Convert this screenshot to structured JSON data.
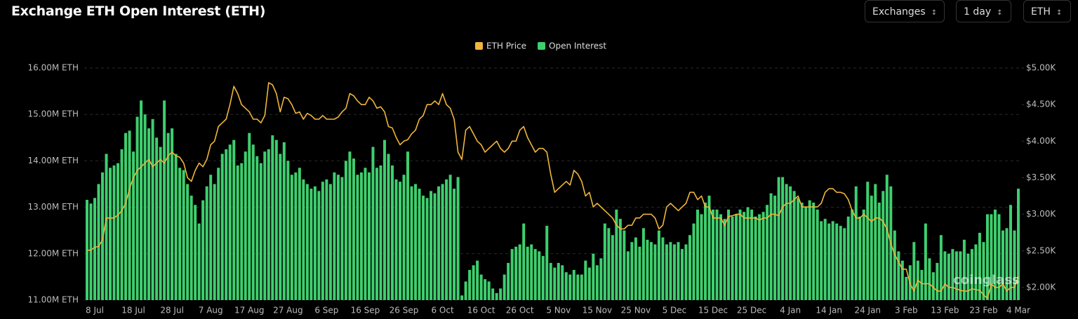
{
  "header": {
    "title": "Exchange ETH Open Interest (ETH)",
    "controls": [
      "Exchanges",
      "1 day",
      "ETH"
    ]
  },
  "chart_data": {
    "type": "bar",
    "watermark": "coinglass",
    "categories": [
      null,
      null,
      "8 Jul",
      null,
      null,
      null,
      null,
      null,
      null,
      null,
      null,
      null,
      "18 Jul",
      null,
      null,
      null,
      null,
      null,
      null,
      null,
      null,
      null,
      "28 Jul",
      null,
      null,
      null,
      null,
      null,
      null,
      null,
      null,
      null,
      "7 Aug",
      null,
      null,
      null,
      null,
      null,
      null,
      null,
      null,
      null,
      "17 Aug",
      null,
      null,
      null,
      null,
      null,
      null,
      null,
      null,
      null,
      "27 Aug",
      null,
      null,
      null,
      null,
      null,
      null,
      null,
      null,
      null,
      "6 Sep",
      null,
      null,
      null,
      null,
      null,
      null,
      null,
      null,
      null,
      "16 Sep",
      null,
      null,
      null,
      null,
      null,
      null,
      null,
      null,
      null,
      "26 Sep",
      null,
      null,
      null,
      null,
      null,
      null,
      null,
      null,
      null,
      "6 Oct",
      null,
      null,
      null,
      null,
      null,
      null,
      null,
      null,
      null,
      "16 Oct",
      null,
      null,
      null,
      null,
      null,
      null,
      null,
      null,
      null,
      "26 Oct",
      null,
      null,
      null,
      null,
      null,
      null,
      null,
      null,
      null,
      "5 Nov",
      null,
      null,
      null,
      null,
      null,
      null,
      null,
      null,
      null,
      "15 Nov",
      null,
      null,
      null,
      null,
      null,
      null,
      null,
      null,
      null,
      "25 Nov",
      null,
      null,
      null,
      null,
      null,
      null,
      null,
      null,
      null,
      "5 Dec",
      null,
      null,
      null,
      null,
      null,
      null,
      null,
      null,
      null,
      "15 Dec",
      null,
      null,
      null,
      null,
      null,
      null,
      null,
      null,
      null,
      "25 Dec",
      null,
      null,
      null,
      null,
      null,
      null,
      null,
      null,
      null,
      "4 Jan",
      null,
      null,
      null,
      null,
      null,
      null,
      null,
      null,
      null,
      "14 Jan",
      null,
      null,
      null,
      null,
      null,
      null,
      null,
      null,
      null,
      "24 Jan",
      null,
      null,
      null,
      null,
      null,
      null,
      null,
      null,
      null,
      "3 Feb",
      null,
      null,
      null,
      null,
      null,
      null,
      null,
      null,
      null,
      "13 Feb",
      null,
      null,
      null,
      null,
      null,
      null,
      null,
      null,
      null,
      "23 Feb",
      null,
      null,
      null,
      null,
      null,
      null,
      null,
      null,
      "4 Mar"
    ],
    "series": [
      {
        "name": "ETH Price",
        "type": "line",
        "axis": "y2",
        "color": "#f0b53c",
        "values": [
          2508,
          2510,
          2550,
          2560,
          2650,
          2950,
          2950,
          2950,
          2990,
          3050,
          3150,
          3350,
          3500,
          3600,
          3650,
          3700,
          3750,
          3650,
          3700,
          3750,
          3700,
          3800,
          3850,
          3800,
          3780,
          3700,
          3500,
          3450,
          3600,
          3700,
          3650,
          3750,
          3950,
          4000,
          4200,
          4250,
          4300,
          4500,
          4750,
          4650,
          4500,
          4450,
          4400,
          4300,
          4300,
          4250,
          4350,
          4800,
          4770,
          4650,
          4400,
          4600,
          4580,
          4500,
          4380,
          4400,
          4300,
          4380,
          4350,
          4300,
          4300,
          4350,
          4300,
          4300,
          4300,
          4330,
          4400,
          4450,
          4650,
          4620,
          4550,
          4500,
          4500,
          4600,
          4550,
          4450,
          4470,
          4400,
          4200,
          4180,
          4050,
          3950,
          4000,
          4020,
          4100,
          4150,
          4300,
          4350,
          4500,
          4500,
          4550,
          4500,
          4650,
          4500,
          4450,
          4300,
          3850,
          3750,
          4150,
          4200,
          4100,
          4000,
          3950,
          3850,
          3900,
          3950,
          4000,
          3900,
          3850,
          3900,
          4000,
          4000,
          4150,
          4200,
          4050,
          3950,
          3850,
          3900,
          3900,
          3850,
          3550,
          3300,
          3350,
          3400,
          3450,
          3400,
          3600,
          3550,
          3450,
          3250,
          3300,
          3100,
          3150,
          3100,
          3050,
          3000,
          2950,
          2850,
          2800,
          2800,
          2850,
          2850,
          2950,
          2950,
          3000,
          3000,
          3000,
          2950,
          2800,
          2850,
          3100,
          3150,
          3100,
          3050,
          3100,
          3150,
          3300,
          3300,
          3200,
          3250,
          3100,
          3100,
          2950,
          2950,
          2950,
          2850,
          2970,
          2980,
          3000,
          3000,
          2950,
          2950,
          2950,
          2950,
          2920,
          2950,
          2950,
          3000,
          3000,
          2980,
          3100,
          3150,
          3150,
          3200,
          3250,
          3100,
          3100,
          3100,
          3100,
          3100,
          3150,
          3300,
          3350,
          3350,
          3300,
          3300,
          3280,
          3200,
          3050,
          2950,
          2950,
          3000,
          2950,
          2900,
          2950,
          2950,
          2900,
          2800,
          2600,
          2450,
          2350,
          2250,
          2250,
          2050,
          1950,
          2100,
          2050,
          2050,
          2050,
          2000,
          1950,
          1950,
          2050,
          2000,
          2000,
          1980,
          1960,
          1950,
          1950,
          1980,
          1970,
          1960,
          1900,
          1850,
          2050,
          2000,
          2000,
          2050,
          1950,
          2000,
          2000,
          2150
        ]
      },
      {
        "name": "Open Interest",
        "type": "bar",
        "color": "#3ecf6e",
        "values": [
          13.16,
          13.08,
          13.2,
          13.5,
          13.75,
          14.15,
          13.85,
          13.9,
          13.95,
          14.25,
          14.6,
          14.65,
          14.2,
          14.95,
          15.3,
          15.0,
          14.7,
          14.9,
          14.5,
          14.3,
          15.3,
          14.6,
          14.7,
          14.15,
          13.85,
          13.8,
          13.5,
          13.25,
          13.05,
          12.65,
          13.15,
          13.45,
          13.7,
          13.5,
          13.85,
          14.15,
          14.25,
          14.35,
          14.45,
          13.9,
          13.95,
          14.2,
          14.6,
          14.35,
          14.1,
          13.95,
          14.2,
          14.25,
          14.55,
          14.45,
          14.15,
          14.4,
          14.0,
          13.7,
          13.75,
          13.85,
          13.6,
          13.5,
          13.4,
          13.45,
          13.35,
          13.55,
          13.6,
          13.5,
          13.75,
          13.7,
          13.65,
          14.0,
          14.2,
          14.05,
          13.7,
          13.75,
          13.85,
          13.75,
          14.3,
          13.85,
          13.9,
          14.45,
          14.15,
          13.9,
          13.6,
          13.55,
          13.7,
          14.2,
          13.45,
          13.5,
          13.4,
          13.25,
          13.2,
          13.35,
          13.3,
          13.45,
          13.5,
          13.6,
          13.7,
          13.4,
          13.65,
          11.1,
          11.4,
          11.65,
          11.75,
          11.85,
          11.55,
          11.45,
          11.4,
          11.25,
          11.15,
          11.25,
          11.55,
          11.8,
          12.1,
          12.15,
          12.2,
          12.65,
          12.15,
          12.2,
          12.1,
          12.05,
          11.95,
          12.6,
          11.8,
          11.7,
          11.8,
          11.75,
          11.6,
          11.55,
          11.65,
          11.55,
          11.55,
          11.85,
          11.7,
          12.0,
          11.75,
          11.9,
          12.65,
          12.55,
          12.4,
          12.95,
          12.75,
          12.5,
          12.05,
          12.25,
          12.35,
          12.15,
          12.55,
          12.3,
          12.25,
          12.2,
          12.5,
          12.35,
          12.2,
          12.25,
          12.2,
          12.25,
          12.1,
          12.2,
          12.4,
          12.65,
          12.95,
          12.85,
          13.1,
          13.25,
          12.95,
          12.95,
          12.85,
          12.75,
          12.95,
          12.8,
          12.85,
          12.95,
          12.9,
          13.0,
          12.95,
          12.8,
          12.85,
          12.9,
          13.05,
          13.3,
          13.25,
          13.65,
          13.65,
          13.5,
          13.45,
          13.35,
          13.2,
          13.1,
          13.0,
          13.15,
          13.1,
          12.95,
          12.7,
          12.75,
          12.65,
          12.7,
          12.65,
          12.6,
          12.55,
          12.8,
          12.95,
          13.45,
          12.8,
          12.95,
          13.55,
          13.25,
          13.5,
          13.1,
          13.35,
          13.7,
          13.45,
          12.5,
          12.05,
          11.85,
          11.5,
          11.75,
          12.25,
          11.85,
          11.65,
          12.65,
          11.9,
          11.6,
          11.8,
          12.4,
          12.05,
          12.0,
          12.1,
          12.05,
          12.05,
          12.3,
          12.0,
          12.1,
          12.2,
          12.45,
          12.25,
          12.85,
          12.85,
          12.95,
          12.85,
          12.5,
          12.55,
          13.05,
          12.5,
          13.4
        ]
      }
    ],
    "ylim": [
      11,
      16
    ],
    "yticks": [
      {
        "value": 11,
        "label": "11.00M ETH"
      },
      {
        "value": 12,
        "label": "12.00M ETH"
      },
      {
        "value": 13,
        "label": "13.00M ETH"
      },
      {
        "value": 14,
        "label": "14.00M ETH"
      },
      {
        "value": 15,
        "label": "15.00M ETH"
      },
      {
        "value": 16,
        "label": "16.00M ETH"
      }
    ],
    "y2lim": [
      1827,
      5000
    ],
    "y2ticks": [
      {
        "value": 2000,
        "label": "$2.00K"
      },
      {
        "value": 2500,
        "label": "$2.50K"
      },
      {
        "value": 3000,
        "label": "$3.00K"
      },
      {
        "value": 3500,
        "label": "$3.50K"
      },
      {
        "value": 4000,
        "label": "$4.00K"
      },
      {
        "value": 4500,
        "label": "$4.50K"
      },
      {
        "value": 5000,
        "label": "$5.00K"
      }
    ],
    "grid": true,
    "legend": "top"
  }
}
